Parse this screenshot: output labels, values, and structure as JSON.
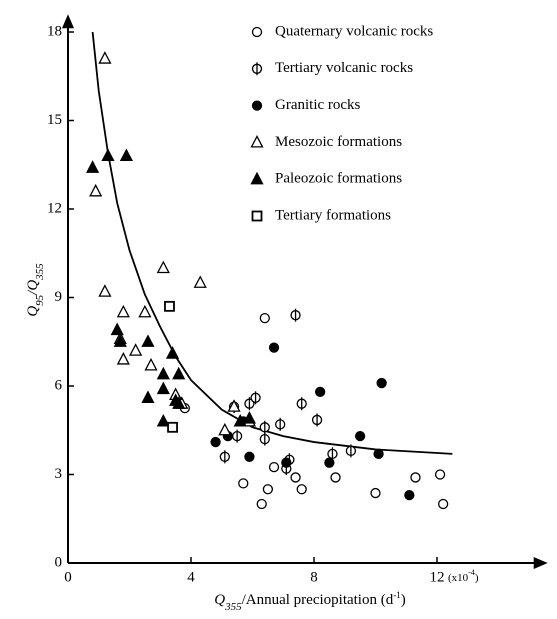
{
  "chart_data": {
    "type": "scatter",
    "xlabel": [
      "Q",
      "355",
      "/Annual preciopitation (d",
      "-1",
      ")"
    ],
    "ylabel": [
      "Q",
      "95",
      "/Q",
      "355"
    ],
    "x_unit_note": [
      "(x10",
      "-4",
      ")"
    ],
    "xlim": [
      0,
      15.6
    ],
    "ylim": [
      0,
      18.6
    ],
    "xticks": [
      0,
      4,
      8,
      12
    ],
    "yticks": [
      0,
      3,
      6,
      9,
      12,
      15,
      18
    ],
    "color": "#000000",
    "legend": "top-right",
    "fit_curve": {
      "x": [
        0.8,
        1,
        1.3,
        1.6,
        2,
        2.5,
        3,
        3.5,
        4,
        5,
        6,
        7,
        8,
        10,
        12.5
      ],
      "y": [
        18,
        16,
        13.9,
        12.2,
        10.6,
        9.1,
        8,
        7,
        6.2,
        5.2,
        4.6,
        4.3,
        4.1,
        3.85,
        3.7
      ]
    },
    "series": [
      {
        "name": "Quaternary volcanic rocks",
        "marker": "circle",
        "filled": false,
        "bar": false,
        "x": [
          6.4,
          5.7,
          6.5,
          6.3,
          6.7,
          7.4,
          7.6,
          8.7,
          10.0,
          11.3,
          12.1,
          12.2,
          3.8
        ],
        "values": [
          8.3,
          2.7,
          2.5,
          2.0,
          3.25,
          2.9,
          2.5,
          2.9,
          2.37,
          2.9,
          3.0,
          2.0,
          5.25
        ]
      },
      {
        "name": "Tertiary volcanic rocks",
        "marker": "circle",
        "filled": false,
        "bar": true,
        "x": [
          7.4,
          5.1,
          5.4,
          5.9,
          6.1,
          6.4,
          6.4,
          6.9,
          7.6,
          7.2,
          7.1,
          8.1,
          8.6,
          9.2,
          5.5
        ],
        "values": [
          8.4,
          3.6,
          5.3,
          5.4,
          5.6,
          4.6,
          4.2,
          4.7,
          5.4,
          3.5,
          3.2,
          4.85,
          3.7,
          3.8,
          4.3
        ]
      },
      {
        "name": "Granitic rocks",
        "marker": "circle",
        "filled": true,
        "bar": false,
        "x": [
          6.7,
          8.2,
          10.2,
          4.8,
          5.2,
          5.9,
          7.1,
          8.5,
          9.5,
          10.1,
          11.1,
          5.7
        ],
        "values": [
          7.3,
          5.8,
          6.1,
          4.1,
          4.3,
          3.6,
          3.4,
          3.4,
          4.3,
          3.7,
          2.3,
          4.8
        ]
      },
      {
        "name": "Mesozoic formations",
        "marker": "triangle",
        "filled": false,
        "bar": false,
        "x": [
          1.2,
          0.9,
          1.2,
          1.8,
          1.7,
          1.8,
          2.2,
          2.5,
          2.7,
          3.1,
          4.3,
          3.7,
          3.5,
          5.4,
          5.1,
          5.9
        ],
        "values": [
          17.1,
          12.6,
          9.2,
          8.5,
          7.6,
          6.9,
          7.2,
          8.5,
          6.7,
          10.0,
          9.5,
          5.4,
          5.7,
          5.3,
          4.5,
          4.8
        ]
      },
      {
        "name": "Paleozoic formations",
        "marker": "triangle",
        "filled": true,
        "bar": false,
        "x": [
          0.8,
          1.3,
          1.9,
          1.6,
          1.7,
          2.6,
          2.6,
          3.1,
          3.1,
          3.1,
          3.4,
          3.6,
          3.5,
          3.6,
          5.9,
          5.6
        ],
        "values": [
          13.4,
          13.8,
          13.8,
          7.9,
          7.5,
          7.5,
          5.6,
          6.4,
          5.9,
          4.8,
          7.1,
          6.4,
          5.5,
          5.4,
          4.9,
          4.8
        ]
      },
      {
        "name": "Tertiary formations",
        "marker": "square",
        "filled": false,
        "bar": false,
        "x": [
          3.3,
          3.4
        ],
        "values": [
          8.7,
          4.6
        ]
      }
    ]
  }
}
